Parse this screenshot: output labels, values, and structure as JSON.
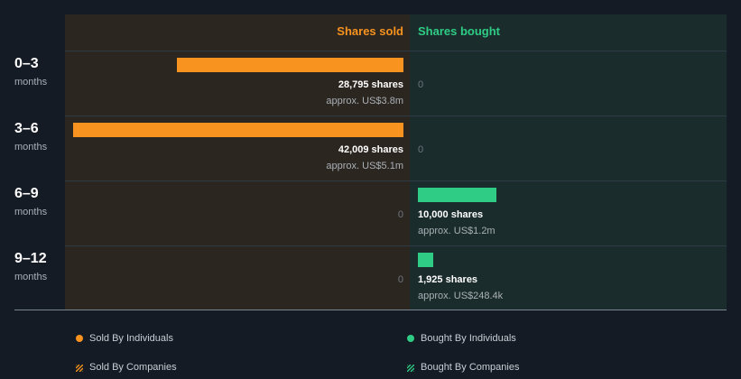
{
  "colors": {
    "sold": "#f7931e",
    "bought": "#2ecc85"
  },
  "headers": {
    "sold": "Shares sold",
    "bought": "Shares bought"
  },
  "chart_data": {
    "type": "bar",
    "categories": [
      "0–3",
      "3–6",
      "6–9",
      "9–12"
    ],
    "category_unit": "months",
    "series": [
      {
        "name": "Shares sold",
        "values": [
          28795,
          42009,
          0,
          0
        ]
      },
      {
        "name": "Shares bought",
        "values": [
          0,
          0,
          10000,
          1925
        ]
      }
    ]
  },
  "rows": [
    {
      "period": "0–3",
      "unit": "months",
      "sold_value": "28,795 shares",
      "sold_approx": "approx. US$3.8m",
      "bought_zero": "0"
    },
    {
      "period": "3–6",
      "unit": "months",
      "sold_value": "42,009 shares",
      "sold_approx": "approx. US$5.1m",
      "bought_zero": "0"
    },
    {
      "period": "6–9",
      "unit": "months",
      "sold_zero": "0",
      "bought_value": "10,000 shares",
      "bought_approx": "approx. US$1.2m"
    },
    {
      "period": "9–12",
      "unit": "months",
      "sold_zero": "0",
      "bought_value": "1,925 shares",
      "bought_approx": "approx. US$248.4k"
    }
  ],
  "legend": [
    {
      "label": "Sold By Individuals",
      "icon": "dot",
      "color": "#f7931e"
    },
    {
      "label": "Bought By Individuals",
      "icon": "dot",
      "color": "#2ecc85"
    },
    {
      "label": "Sold By Companies",
      "icon": "hatch",
      "color": "#f7931e"
    },
    {
      "label": "Bought By Companies",
      "icon": "hatch",
      "color": "#2ecc85"
    }
  ]
}
